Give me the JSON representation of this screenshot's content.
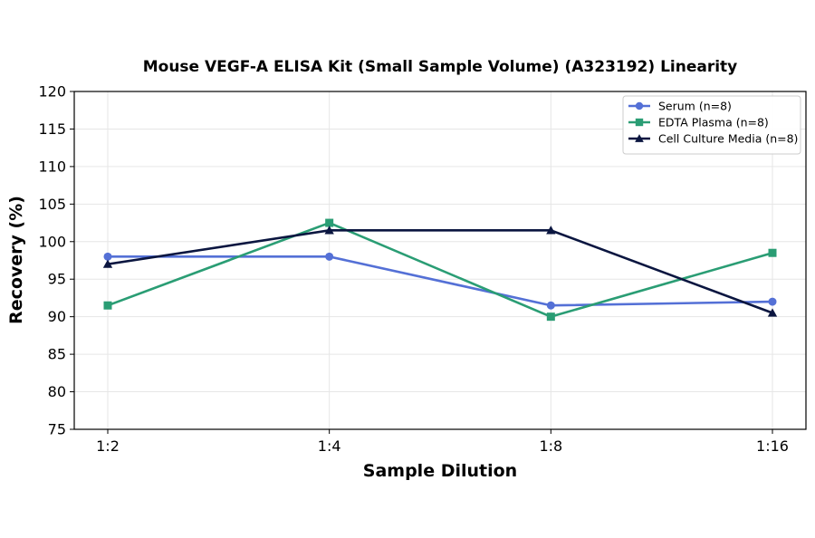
{
  "chart_data": {
    "type": "line",
    "title": "Mouse VEGF-A ELISA Kit (Small Sample Volume) (A323192) Linearity",
    "xlabel": "Sample Dilution",
    "ylabel": "Recovery (%)",
    "categories": [
      "1:2",
      "1:4",
      "1:8",
      "1:16"
    ],
    "ylim": [
      75,
      120
    ],
    "yticks": [
      75,
      80,
      85,
      90,
      95,
      100,
      105,
      110,
      115,
      120
    ],
    "grid": true,
    "legend_position": "top-right",
    "series": [
      {
        "name": "Serum (n=8)",
        "values": [
          98,
          98,
          91.5,
          92
        ],
        "color": "#5470d6",
        "marker": "circle"
      },
      {
        "name": "EDTA Plasma (n=8)",
        "values": [
          91.5,
          102.5,
          90,
          98.5
        ],
        "color": "#2a9d74",
        "marker": "square"
      },
      {
        "name": "Cell Culture Media (n=8)",
        "values": [
          97,
          101.5,
          101.5,
          90.5
        ],
        "color": "#0b1640",
        "marker": "triangle"
      }
    ]
  }
}
